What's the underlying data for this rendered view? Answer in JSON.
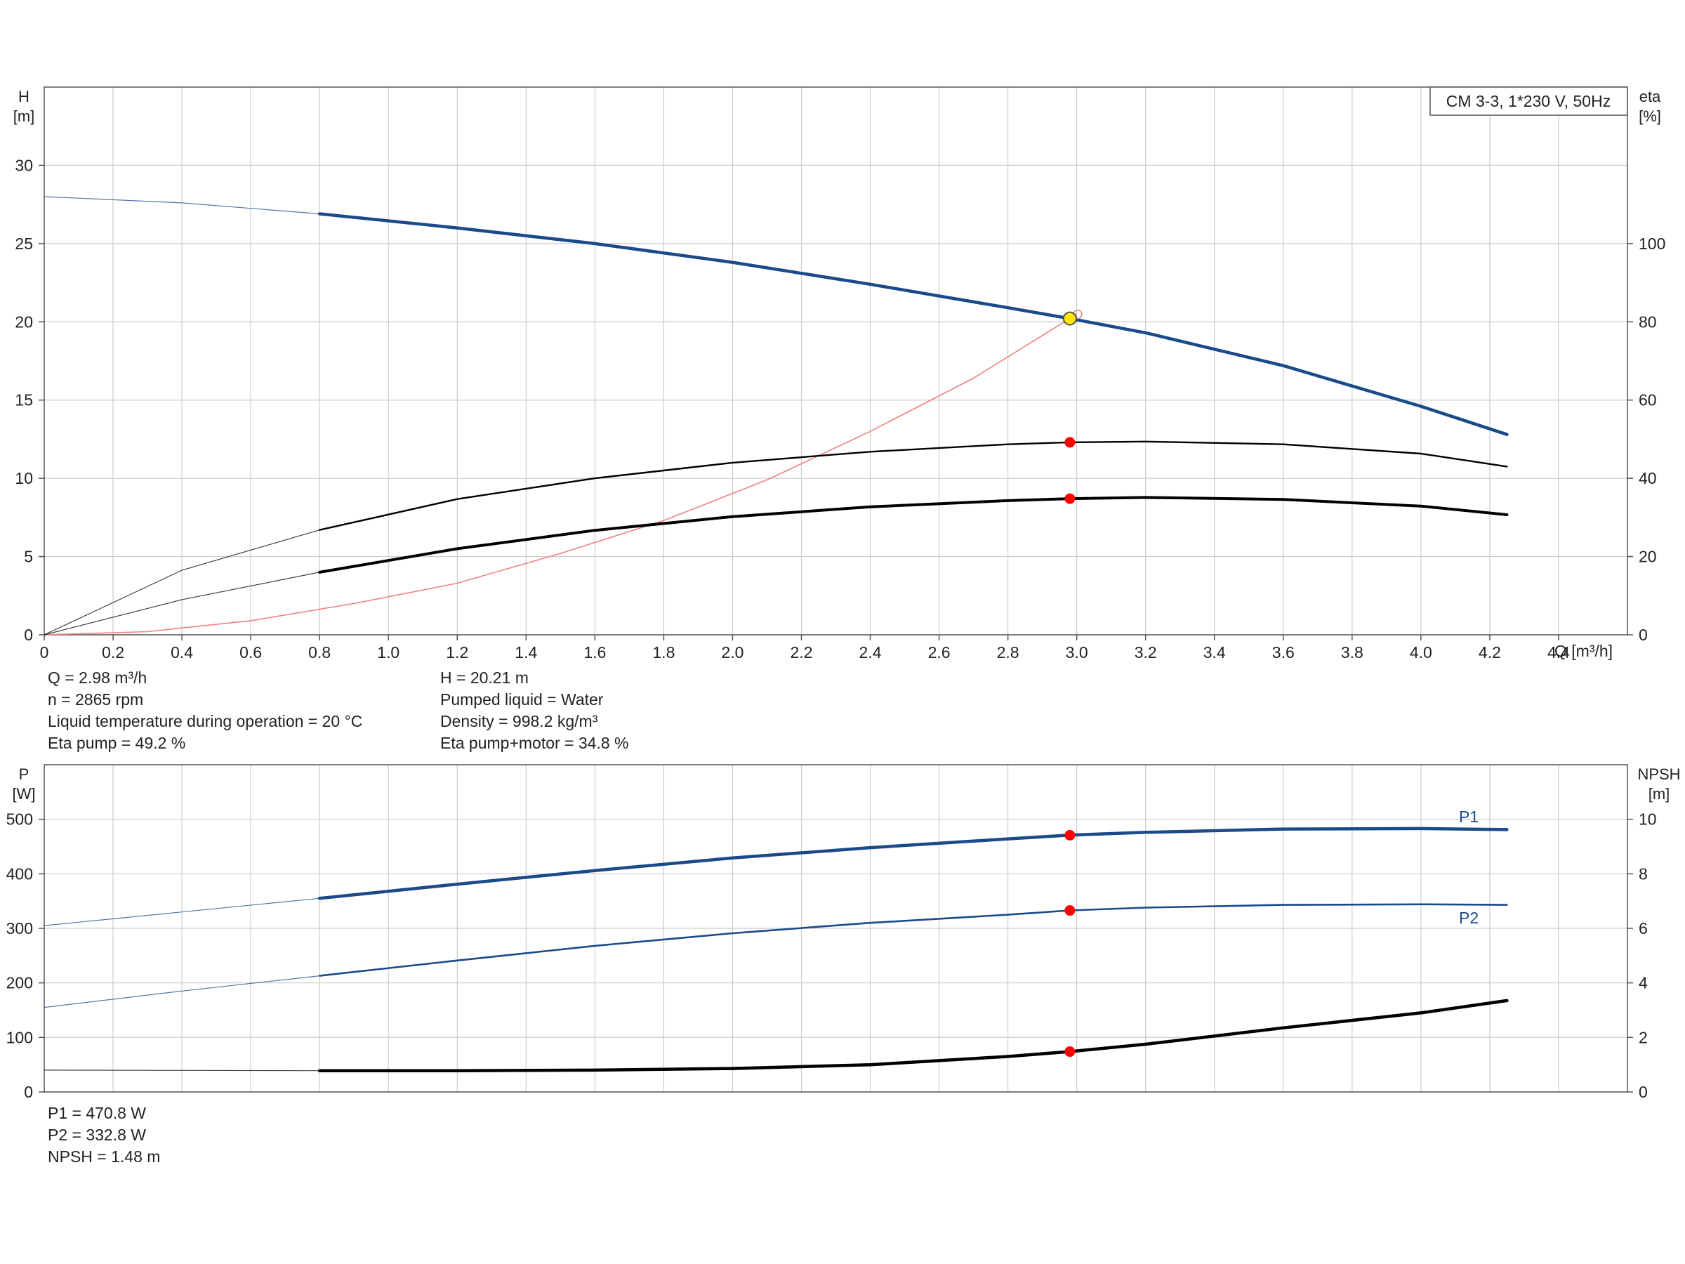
{
  "top_chart": {
    "legend_box": "CM 3-3, 1*230 V, 50Hz",
    "left_axis": {
      "label": "H",
      "unit": "[m]",
      "ticks": [
        0,
        5,
        10,
        15,
        20,
        25,
        30
      ],
      "range": [
        0,
        35
      ]
    },
    "right_axis": {
      "label": "eta",
      "unit": "[%]",
      "ticks": [
        0,
        20,
        40,
        60,
        80,
        100
      ],
      "range": [
        0,
        140
      ]
    },
    "x_axis": {
      "label": "Q [m³/h]",
      "range": [
        0,
        4.6
      ],
      "ticks": [
        "0",
        "0.2",
        "0.4",
        "0.6",
        "0.8",
        "1.0",
        "1.2",
        "1.4",
        "1.6",
        "1.8",
        "2.0",
        "2.2",
        "2.4",
        "2.6",
        "2.8",
        "3.0",
        "3.2",
        "3.4",
        "3.6",
        "3.8",
        "4.0",
        "4.2",
        "4.4"
      ]
    }
  },
  "top_info": {
    "col1": [
      "Q = 2.98 m³/h",
      "n = 2865 rpm",
      "Liquid temperature during operation = 20 °C",
      "Eta pump = 49.2 %"
    ],
    "col2": [
      "H = 20.21 m",
      "Pumped liquid = Water",
      "Density = 998.2 kg/m³",
      "Eta pump+motor = 34.8 %"
    ]
  },
  "bottom_chart": {
    "left_axis": {
      "label": "P",
      "unit": "[W]",
      "ticks": [
        0,
        100,
        200,
        300,
        400,
        500
      ],
      "range": [
        0,
        600
      ]
    },
    "right_axis": {
      "label": "NPSH",
      "unit": "[m]",
      "ticks": [
        0,
        2,
        4,
        6,
        8,
        10
      ],
      "range": [
        0,
        12
      ]
    },
    "curve_labels": {
      "p1": "P1",
      "p2": "P2"
    }
  },
  "bottom_info": [
    "P1 = 470.8 W",
    "P2 = 332.8 W",
    "NPSH = 1.48 m"
  ],
  "colors": {
    "pump_curve": "#1a4a8a",
    "system_curve": "#f08080",
    "eta": "#000000",
    "duty_point": "#ff0000",
    "duty_marker": "#ffe800",
    "grid": "#cccccc"
  },
  "chart_data": [
    {
      "type": "line",
      "x_unit": "m³/h",
      "series": [
        {
          "name": "H",
          "axis": "left",
          "extrapolated_from": 0.8,
          "x": [
            0,
            0.4,
            0.8,
            1.2,
            1.6,
            2.0,
            2.4,
            2.8,
            2.98,
            3.2,
            3.6,
            4.0,
            4.25
          ],
          "y": [
            28.0,
            27.6,
            26.9,
            26.0,
            25.0,
            23.8,
            22.4,
            20.9,
            20.21,
            19.3,
            17.2,
            14.6,
            12.8
          ]
        },
        {
          "name": "System curve",
          "axis": "left",
          "x": [
            0,
            0.3,
            0.6,
            0.9,
            1.2,
            1.5,
            1.8,
            2.1,
            2.4,
            2.7,
            2.98,
            3.0
          ],
          "y": [
            0,
            0.2,
            0.9,
            2.0,
            3.3,
            5.2,
            7.3,
            9.9,
            13.0,
            16.4,
            20.21,
            20.5
          ]
        },
        {
          "name": "Eta pump",
          "axis": "right",
          "extrapolated_from": 0.8,
          "x": [
            0,
            0.4,
            0.8,
            1.2,
            1.6,
            2.0,
            2.4,
            2.8,
            2.98,
            3.2,
            3.6,
            4.0,
            4.25
          ],
          "y": [
            0,
            16.5,
            26.8,
            34.7,
            40.0,
            44.0,
            46.8,
            48.7,
            49.2,
            49.4,
            48.7,
            46.3,
            43.0
          ]
        },
        {
          "name": "Eta pump+motor",
          "axis": "right",
          "extrapolated_from": 0.8,
          "x": [
            0,
            0.4,
            0.8,
            1.2,
            1.6,
            2.0,
            2.4,
            2.8,
            2.98,
            3.2,
            3.6,
            4.0,
            4.25
          ],
          "y": [
            0,
            9.0,
            16.0,
            22.0,
            26.7,
            30.2,
            32.7,
            34.3,
            34.8,
            35.1,
            34.6,
            32.9,
            30.7
          ]
        }
      ],
      "duty_point": {
        "Q": 2.98,
        "H": 20.21,
        "eta_pump": 49.2,
        "eta_pump_motor": 34.8
      }
    },
    {
      "type": "line",
      "x_unit": "m³/h",
      "series": [
        {
          "name": "P1",
          "axis": "left",
          "extrapolated_from": 0.8,
          "x": [
            0,
            0.4,
            0.8,
            1.2,
            1.6,
            2.0,
            2.4,
            2.8,
            2.98,
            3.2,
            3.6,
            4.0,
            4.25
          ],
          "y": [
            305,
            330,
            355,
            381,
            406,
            429,
            448,
            464,
            470.8,
            476,
            482,
            483,
            481
          ]
        },
        {
          "name": "P2",
          "axis": "left",
          "extrapolated_from": 0.8,
          "x": [
            0,
            0.4,
            0.8,
            1.2,
            1.6,
            2.0,
            2.4,
            2.8,
            2.98,
            3.2,
            3.6,
            4.0,
            4.25
          ],
          "y": [
            155,
            185,
            213,
            241,
            268,
            291,
            310,
            325,
            332.8,
            338,
            343,
            344,
            343
          ]
        },
        {
          "name": "NPSH",
          "axis": "right",
          "extrapolated_from": 0.8,
          "x": [
            0,
            0.4,
            0.8,
            1.2,
            1.6,
            2.0,
            2.4,
            2.8,
            2.98,
            3.2,
            3.6,
            4.0,
            4.25
          ],
          "y": [
            0.8,
            0.79,
            0.78,
            0.78,
            0.8,
            0.86,
            1.0,
            1.3,
            1.48,
            1.75,
            2.35,
            2.9,
            3.35
          ]
        }
      ],
      "duty_point": {
        "Q": 2.98,
        "P1": 470.8,
        "P2": 332.8,
        "NPSH": 1.48
      }
    }
  ]
}
